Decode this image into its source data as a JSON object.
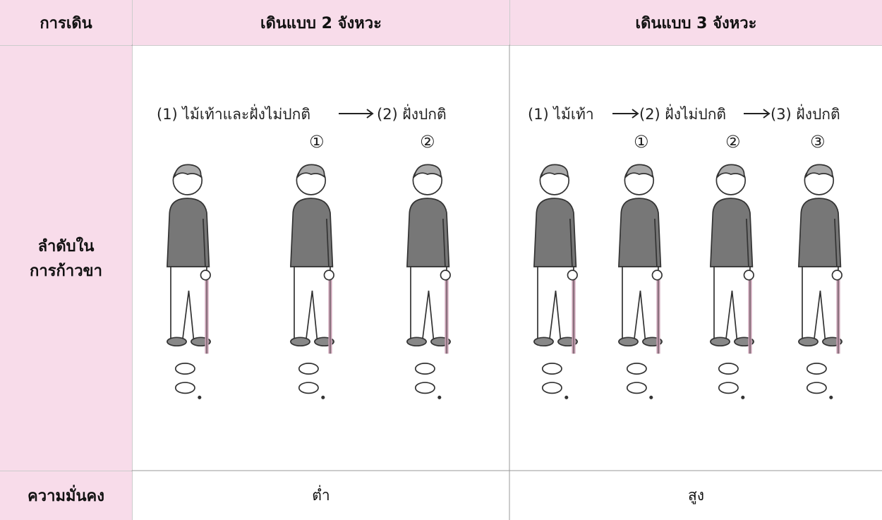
{
  "table": {
    "header": [
      "การเดิน",
      "เดินแบบ 2 จังหวะ",
      "เดินแบบ 3 จังหวะ"
    ],
    "sequence_row": {
      "label": [
        "ลำดับใน",
        "การก้าวขา"
      ],
      "two_beat": {
        "steps": [
          "(1) ไม้เท้าและฝั่งไม่ปกติ",
          "(2) ฝั่งปกติ"
        ],
        "figure_labels": [
          "①",
          "②"
        ]
      },
      "three_beat": {
        "steps": [
          "(1) ไม้เท้า",
          "(2) ฝั่งไม่ปกติ",
          "(3) ฝั่งปกติ"
        ],
        "figure_labels": [
          "①",
          "②",
          "③"
        ]
      }
    },
    "stability_row": {
      "label": "ความมั่นคง",
      "two_beat": "ต่ำ",
      "three_beat": "สูง"
    }
  }
}
